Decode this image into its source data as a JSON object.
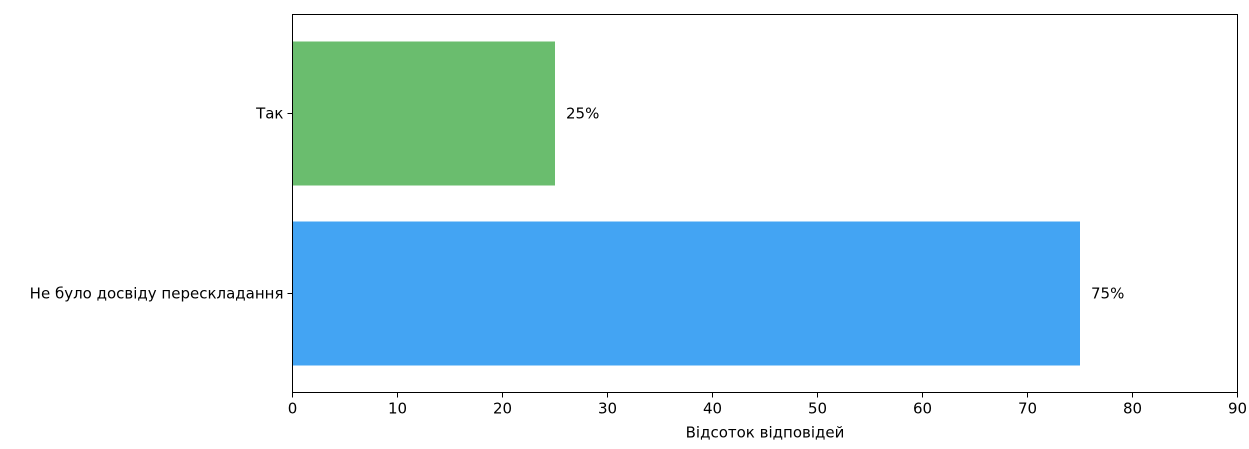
{
  "chart_data": {
    "type": "bar",
    "orientation": "horizontal",
    "title": "",
    "xlabel": "Відсоток відповідей",
    "ylabel": "",
    "xlim": [
      0,
      90
    ],
    "x_ticks": [
      0,
      10,
      20,
      30,
      40,
      50,
      60,
      70,
      80,
      90
    ],
    "grid": false,
    "legend": "none",
    "categories": [
      "Так",
      "Не було досвіду перескладання"
    ],
    "values": [
      25,
      75
    ],
    "value_labels": [
      "25%",
      "75%"
    ],
    "colors": [
      "#6abd6e",
      "#43a4f3"
    ]
  }
}
